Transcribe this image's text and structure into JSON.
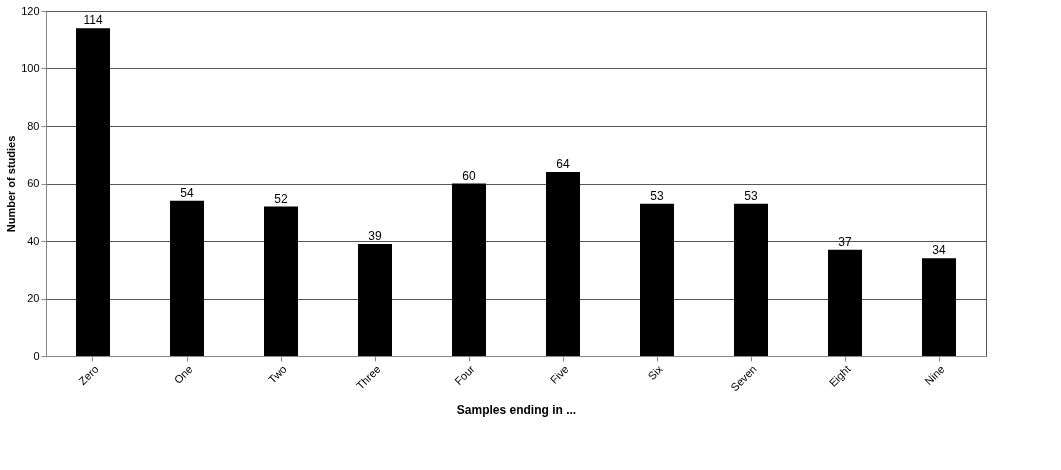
{
  "chart_data": {
    "type": "bar",
    "xlabel": "Samples ending in ...",
    "ylabel": "Number of studies",
    "categories": [
      "Zero",
      "One",
      "Two",
      "Three",
      "Four",
      "Five",
      "Six",
      "Seven",
      "Eight",
      "Nine"
    ],
    "values": [
      114,
      54,
      52,
      39,
      60,
      64,
      53,
      53,
      37,
      34
    ],
    "color": "#000000",
    "ylim": [
      0,
      120
    ],
    "yticks": [
      0,
      20,
      40,
      60,
      80,
      100,
      120
    ],
    "grid": "y",
    "data_labels": true
  }
}
